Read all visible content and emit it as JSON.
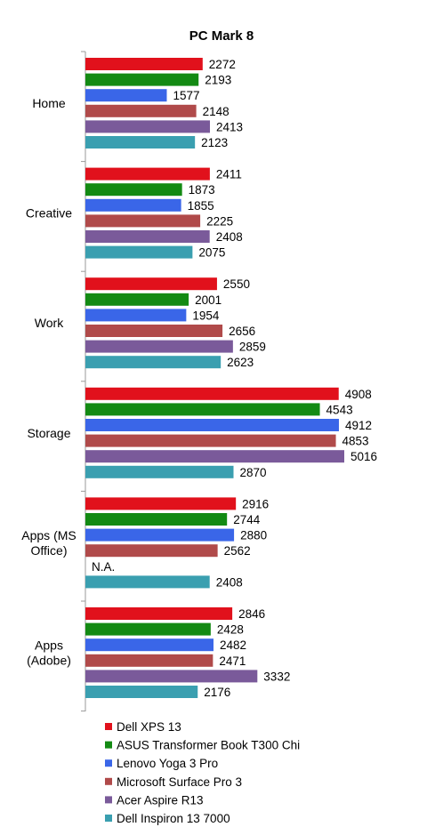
{
  "chart_data": {
    "type": "bar",
    "orientation": "horizontal",
    "title": "PC Mark 8",
    "categories": [
      "Home",
      "Creative",
      "Work",
      "Storage",
      "Apps (MS Office)",
      "Apps (Adobe)"
    ],
    "category_label_lines": [
      [
        "Home"
      ],
      [
        "Creative"
      ],
      [
        "Work"
      ],
      [
        "Storage"
      ],
      [
        "Apps (MS",
        "Office)"
      ],
      [
        "Apps",
        "(Adobe)"
      ]
    ],
    "series": [
      {
        "name": "Dell XPS 13",
        "color": "#e1111c",
        "values": [
          2272,
          2411,
          2550,
          4908,
          2916,
          2846
        ]
      },
      {
        "name": "ASUS Transformer Book T300 Chi",
        "color": "#138a13",
        "values": [
          2193,
          1873,
          2001,
          4543,
          2744,
          2428
        ]
      },
      {
        "name": "Lenovo Yoga 3 Pro",
        "color": "#3a66e8",
        "values": [
          1577,
          1855,
          1954,
          4912,
          2880,
          2482
        ]
      },
      {
        "name": "Microsoft Surface Pro 3",
        "color": "#b04a4a",
        "values": [
          2148,
          2225,
          2656,
          4853,
          2562,
          2471
        ]
      },
      {
        "name": "Acer Aspire R13",
        "color": "#7a5a9a",
        "values": [
          2413,
          2408,
          2859,
          5016,
          null,
          3332
        ]
      },
      {
        "name": "Dell Inspiron 13 7000",
        "color": "#3a9fb0",
        "values": [
          2123,
          2075,
          2623,
          2870,
          2408,
          2176
        ]
      }
    ],
    "missing_value_label": "N.A.",
    "xlim": [
      0,
      5800
    ],
    "grid": false,
    "legend_position": "bottom"
  }
}
